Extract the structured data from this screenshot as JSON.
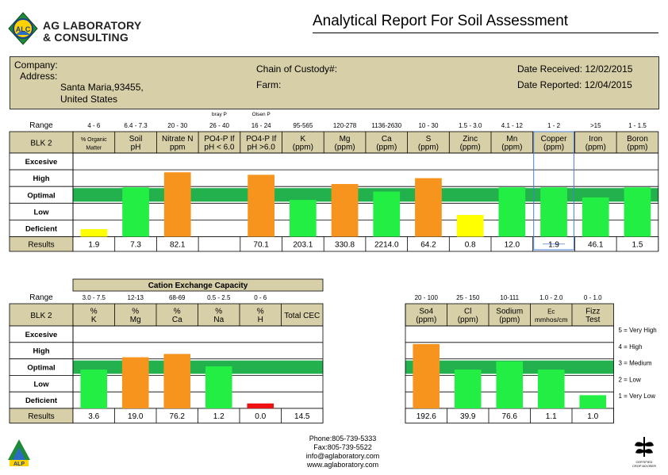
{
  "header": {
    "logo_badge": "ALC",
    "logo_line1": "AG LABORATORY",
    "logo_line2": "& CONSULTING",
    "title": "Analytical Report For Soil Assessment"
  },
  "info": {
    "company_label": "Company:",
    "address_label": "Address:",
    "address_line1": "Santa Maria,93455,",
    "address_line2": "United States",
    "custody_label": "Chain of Custody#:",
    "farm_label": "Farm:",
    "date_received": "Date Received: 12/02/2015",
    "date_reported": "Date Reported: 12/04/2015"
  },
  "colors": {
    "header_fill": "#d7cfa7",
    "optimal_band": "#22b14c",
    "green_bar": "#22ee44",
    "orange_bar": "#f7941d",
    "yellow_bar": "#ffff00",
    "red_bar": "#ee1111"
  },
  "chart_data": [
    {
      "type": "bar",
      "title": "",
      "row_label": "BLK 2",
      "range_label": "Range",
      "results_label": "Results",
      "levels": [
        "Excesive",
        "High",
        "Optimal",
        "Low",
        "Deficient"
      ],
      "columns": [
        {
          "range": "4 - 6",
          "name": [
            "% Organic",
            "Matter"
          ],
          "result": "1.9",
          "level": 0.45,
          "color": "yellow"
        },
        {
          "range": "6.4 - 7.3",
          "name": [
            "Soil",
            "pH"
          ],
          "result": "7.3",
          "level": 2.95,
          "color": "green"
        },
        {
          "range": "20 - 30",
          "name": [
            "Nitrate N",
            "ppm"
          ],
          "result": "82.1",
          "level": 3.85,
          "color": "orange"
        },
        {
          "range": "26 - 40",
          "top_note": "bray P",
          "name": [
            "PO4-P If",
            "pH < 6.0"
          ],
          "result": "",
          "level": 0,
          "color": "none"
        },
        {
          "range": "16 - 24",
          "top_note": "Olsen P",
          "name": [
            "PO4-P If",
            "pH >6.0"
          ],
          "result": "70.1",
          "level": 3.7,
          "color": "orange"
        },
        {
          "range": "95-565",
          "name": [
            "K",
            "(ppm)"
          ],
          "result": "203.1",
          "level": 2.2,
          "color": "green"
        },
        {
          "range": "120-278",
          "name": [
            "Mg",
            "(ppm)"
          ],
          "result": "330.8",
          "level": 3.15,
          "color": "orange"
        },
        {
          "range": "1136-2630",
          "name": [
            "Ca",
            "(ppm)"
          ],
          "result": "2214.0",
          "level": 2.7,
          "color": "green"
        },
        {
          "range": "10 - 30",
          "name": [
            "S",
            "(ppm)"
          ],
          "result": "64.2",
          "level": 3.5,
          "color": "orange"
        },
        {
          "range": "1.5 - 3.0",
          "name": [
            "Zinc",
            "(ppm)"
          ],
          "result": "0.8",
          "level": 1.3,
          "color": "yellow"
        },
        {
          "range": "4.1 - 12",
          "name": [
            "Mn",
            "(ppm)"
          ],
          "result": "12.0",
          "level": 2.95,
          "color": "green"
        },
        {
          "range": "1 - 2",
          "name": [
            "Copper",
            "(ppm)"
          ],
          "result": "1.9",
          "level": 2.95,
          "color": "green",
          "selected": true
        },
        {
          "range": ">15",
          "name": [
            "Iron",
            "(ppm)"
          ],
          "result": "46.1",
          "level": 2.35,
          "color": "green"
        },
        {
          "range": "1 - 1.5",
          "name": [
            "Boron",
            "(ppm)"
          ],
          "result": "1.5",
          "level": 2.95,
          "color": "green"
        }
      ]
    },
    {
      "type": "bar",
      "title": "Cation Exchange Capacity",
      "row_label": "BLK 2",
      "range_label": "Range",
      "results_label": "Results",
      "levels": [
        "Excesive",
        "High",
        "Optimal",
        "Low",
        "Deficient"
      ],
      "columns": [
        {
          "range": "3.0 - 7.5",
          "name": [
            "%",
            "K"
          ],
          "result": "3.6",
          "level": 2.35,
          "color": "green"
        },
        {
          "range": "12-13",
          "name": [
            "%",
            "Mg"
          ],
          "result": "19.0",
          "level": 3.1,
          "color": "orange"
        },
        {
          "range": "68-69",
          "name": [
            "%",
            "Ca"
          ],
          "result": "76.2",
          "level": 3.3,
          "color": "orange"
        },
        {
          "range": "0.5 - 2.5",
          "name": [
            "%",
            "Na"
          ],
          "result": "1.2",
          "level": 2.55,
          "color": "green"
        },
        {
          "range": "0 - 6",
          "name": [
            "%",
            "H"
          ],
          "result": "0.0",
          "level": 0.3,
          "color": "red"
        },
        {
          "range": "",
          "name": [
            "Total CEC"
          ],
          "result": "14.5",
          "level": 0,
          "color": "none"
        }
      ]
    },
    {
      "type": "bar",
      "title": "",
      "levels": [
        "Excesive",
        "High",
        "Optimal",
        "Low",
        "Deficient"
      ],
      "results_label": "Results",
      "columns": [
        {
          "range": "20 - 100",
          "name": [
            "So4",
            "(ppm)"
          ],
          "result": "192.6",
          "level": 3.9,
          "color": "orange"
        },
        {
          "range": "25 - 150",
          "name": [
            "Cl",
            "(ppm)"
          ],
          "result": "39.9",
          "level": 2.35,
          "color": "green"
        },
        {
          "range": "10-111",
          "name": [
            "Sodium",
            "(ppm)"
          ],
          "result": "76.6",
          "level": 2.85,
          "color": "green"
        },
        {
          "range": "1.0 - 2.0",
          "name": [
            "Ec",
            "mmhos/cm"
          ],
          "result": "1.1",
          "level": 2.35,
          "color": "green"
        },
        {
          "range": "0 - 1.0",
          "name": [
            "Fizz",
            "Test"
          ],
          "result": "1.0",
          "level": 0.8,
          "color": "green"
        }
      ],
      "legend": [
        "5 = Very High",
        "4 = High",
        "3 = Medium",
        "2 = Low",
        "1 = Very Low"
      ]
    }
  ],
  "footer": {
    "phone": "Phone:805-739-5333",
    "fax": "Fax:805-739-5522",
    "email": "info@aglaboratory.com",
    "web": "www.aglaboratory.com",
    "left_logo_text": "ALP",
    "right_logo_text1": "CERTIFIED",
    "right_logo_text2": "CROP ADVISER"
  }
}
